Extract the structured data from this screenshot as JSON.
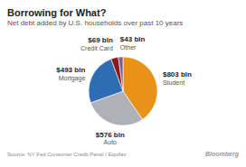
{
  "chart_data": {
    "type": "pie",
    "title": "Borrowing for What?",
    "subtitle": "Net debt added by U.S. households over past 10 years",
    "categories": [
      "Student",
      "Auto",
      "Mortgage",
      "Credit Card",
      "Other"
    ],
    "values": [
      803,
      576,
      493,
      69,
      43
    ],
    "value_labels": [
      "$803 bln",
      "$576 bln",
      "$493 bln",
      "$69 bln",
      "$43 bln"
    ],
    "colors": [
      "#E8921A",
      "#B0B0B8",
      "#2E6DB4",
      "#8B1A1A",
      "#7B5EA7"
    ],
    "data_labels": true,
    "annotations": [
      "Source: NY Fed Consumer Credit Panel / Equifax",
      "Bloomberg"
    ]
  }
}
